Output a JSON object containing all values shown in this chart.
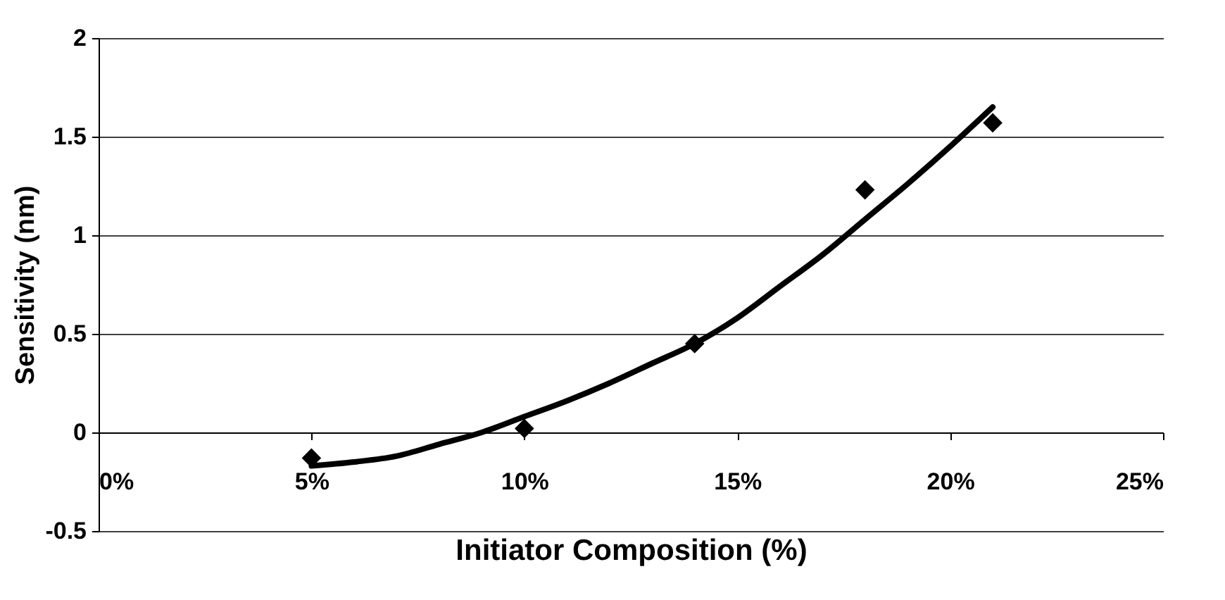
{
  "chart_data": {
    "type": "scatter",
    "xlabel": "Initiator Composition (%)",
    "ylabel": "Sensitivity (nm)",
    "series": [
      {
        "color": "#000000",
        "marker": "diamond",
        "x": [
          5,
          10,
          14,
          18,
          21
        ],
        "values": [
          -0.13,
          0.02,
          0.45,
          1.23,
          1.57
        ]
      },
      {
        "type": "line",
        "color": "#000000",
        "line_style": "solid",
        "x": [
          5,
          6,
          7,
          8,
          9,
          10,
          11,
          12,
          13,
          14,
          15,
          16,
          17,
          18,
          19,
          20,
          21
        ],
        "values": [
          -0.17,
          -0.15,
          -0.12,
          -0.06,
          0.0,
          0.08,
          0.16,
          0.25,
          0.35,
          0.45,
          0.58,
          0.74,
          0.9,
          1.08,
          1.26,
          1.45,
          1.65
        ]
      }
    ],
    "xlim": [
      0,
      25
    ],
    "xticks": [
      {
        "value": 0,
        "label": "0%"
      },
      {
        "value": 5,
        "label": "5%"
      },
      {
        "value": 10,
        "label": "10%"
      },
      {
        "value": 15,
        "label": "15%"
      },
      {
        "value": 20,
        "label": "20%"
      },
      {
        "value": 25,
        "label": "25%"
      }
    ],
    "ylim": [
      -0.5,
      2
    ],
    "yticks": [
      -0.5,
      0,
      0.5,
      1,
      1.5,
      2
    ],
    "grid": "y"
  }
}
